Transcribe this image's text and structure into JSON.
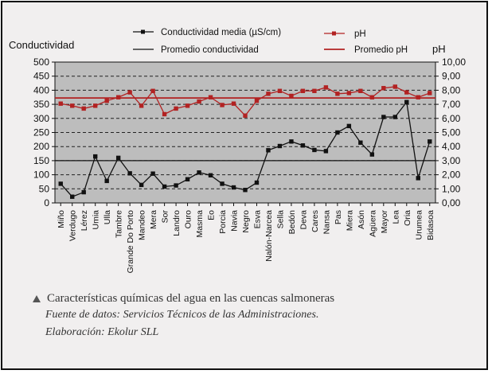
{
  "caption": {
    "title": "Características químicas del agua en las cuencas salmoneras",
    "source": "Fuente de datos: Servicios Técnicos de las Administraciones.",
    "elaboration": "Elaboración: Ekolur SLL"
  },
  "colors": {
    "conductivity": "#111111",
    "ph": "#b22222",
    "plot_background": "#bdbdbd",
    "page_background": "#f1efef"
  },
  "chart_data": {
    "type": "line",
    "title": "",
    "ylabel_left": "Conductividad",
    "ylabel_right": "pH",
    "ylim_left": [
      0,
      500
    ],
    "ylim_right": [
      0,
      10
    ],
    "yticks_left": [
      "0",
      "50",
      "100",
      "150",
      "200",
      "250",
      "300",
      "350",
      "400",
      "450",
      "500"
    ],
    "yticks_right": [
      "0,00",
      "1,00",
      "2,00",
      "3,00",
      "4,00",
      "5,00",
      "6,00",
      "7,00",
      "8,00",
      "9,00",
      "10,00"
    ],
    "grid": "horizontal dashed",
    "legend_position": "top",
    "categories": [
      "Miño",
      "Verdugo",
      "Lérez",
      "Umia",
      "Ulla",
      "Tambre",
      "Grande Do Porto",
      "Mandeo",
      "Mera",
      "Sor",
      "Landro",
      "Ouro",
      "Masma",
      "Eo",
      "Porcia",
      "Navia",
      "Negro",
      "Esva",
      "Nalón-Narcea",
      "Sella",
      "Bedón",
      "Deva",
      "Cares",
      "Nansa",
      "Pas",
      "Miera",
      "Asón",
      "Agüera",
      "Mayor",
      "Lea",
      "Oria",
      "Urumea",
      "Bidasoa"
    ],
    "series": [
      {
        "name": "Conductividad media (µS/cm)",
        "axis": "left",
        "marker": "square",
        "values": [
          68,
          22,
          38,
          165,
          78,
          160,
          105,
          64,
          104,
          58,
          62,
          84,
          108,
          98,
          68,
          55,
          46,
          72,
          187,
          202,
          218,
          204,
          188,
          184,
          250,
          273,
          214,
          172,
          305,
          305,
          358,
          88,
          218
        ]
      },
      {
        "name": "pH",
        "axis": "right",
        "marker": "square",
        "values": [
          7.05,
          6.9,
          6.7,
          6.9,
          7.25,
          7.5,
          7.85,
          6.9,
          7.95,
          6.3,
          6.7,
          6.9,
          7.2,
          7.5,
          6.95,
          7.05,
          6.2,
          7.25,
          7.75,
          7.95,
          7.6,
          7.95,
          7.95,
          8.2,
          7.75,
          7.8,
          7.95,
          7.5,
          8.15,
          8.25,
          7.85,
          7.5,
          7.8
        ]
      }
    ],
    "reference_lines": [
      {
        "name": "Promedio conductividad",
        "axis": "left",
        "value": 150
      },
      {
        "name": "Promedio pH",
        "axis": "right",
        "value": 7.45
      }
    ]
  }
}
